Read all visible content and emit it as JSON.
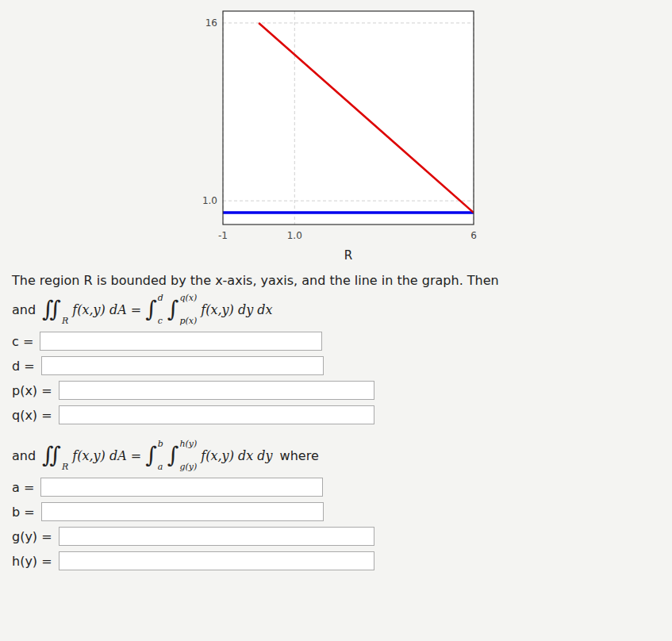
{
  "chart_data": {
    "type": "line",
    "xlabel": "R",
    "xlim": [
      -1,
      6
    ],
    "ylim": [
      -1,
      17
    ],
    "xticks": [
      -1,
      {
        "value": 1.0,
        "label": "1.0"
      },
      6
    ],
    "yticks": [
      {
        "value": 1.0,
        "label": "1.0"
      },
      16
    ],
    "grid": true,
    "series": [
      {
        "type": "hline",
        "color": "#0000ee",
        "values": [
          0
        ]
      },
      {
        "type": "line",
        "color": "#dd0000",
        "x": [
          0,
          6
        ],
        "values": [
          16,
          0
        ]
      }
    ],
    "annotations": {
      "intro": "The region R is bounded by the x-axis, yaxis, and the line in the graph. Then",
      "formulas": [
        {
          "prefix": "and",
          "parts": [
            {
              "text": "∬",
              "sub": "R"
            },
            {
              "text": "f(x,y) dA ="
            },
            {
              "text": "∫",
              "sub": "c",
              "sup": "d"
            },
            {
              "text": "∫",
              "sub": "p(x)",
              "sup": "q(x)"
            },
            {
              "text": "f(x,y) dy dx"
            }
          ],
          "fields": [
            "c =",
            "d =",
            "p(x) =",
            "q(x) ="
          ]
        },
        {
          "prefix": "and",
          "parts": [
            {
              "text": "∬",
              "sub": "R"
            },
            {
              "text": "f(x,y) dA ="
            },
            {
              "text": "∫",
              "sub": "a",
              "sup": "b"
            },
            {
              "text": "∫",
              "sub": "g(y)",
              "sup": "h(y)"
            },
            {
              "text": "f(x,y) dx dy"
            }
          ],
          "suffix": "where",
          "fields": [
            "a =",
            "b =",
            "g(y) =",
            "h(y) ="
          ]
        }
      ]
    }
  }
}
